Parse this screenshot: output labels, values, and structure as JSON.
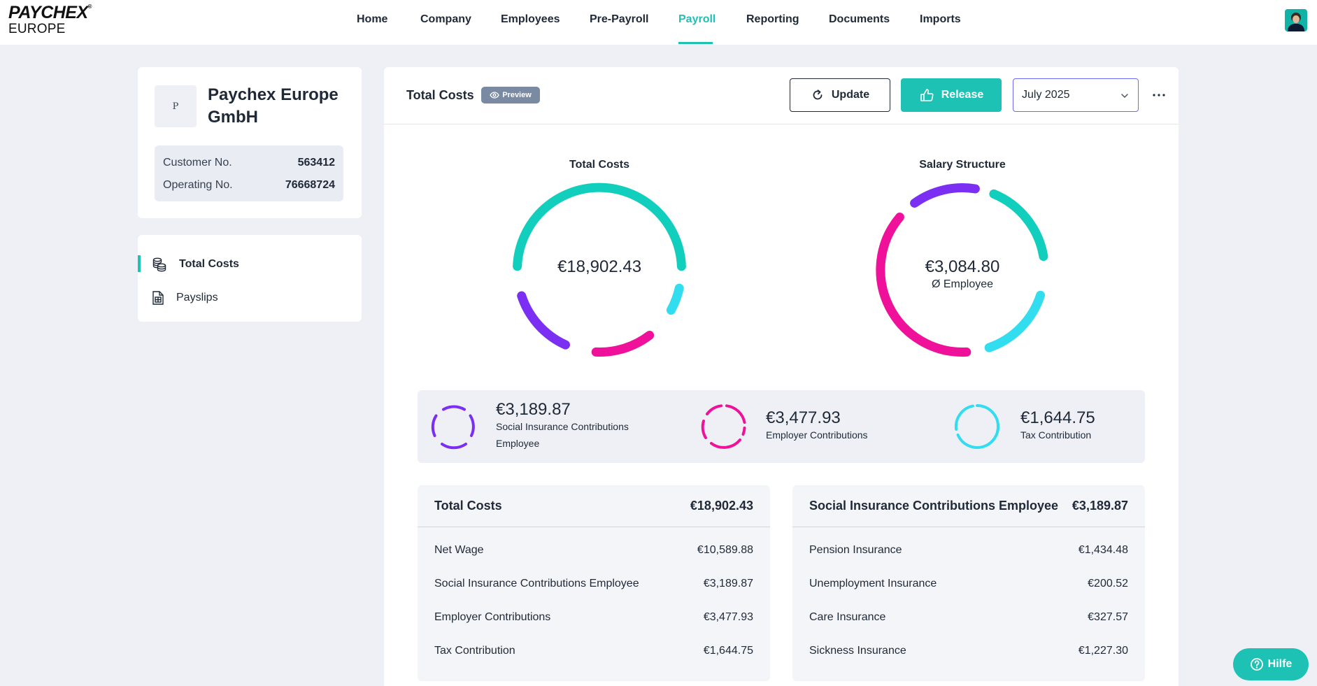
{
  "brand": {
    "line1": "PAYCHEX",
    "line2": "EUROPE"
  },
  "nav": [
    {
      "label": "Home"
    },
    {
      "label": "Company"
    },
    {
      "label": "Employees"
    },
    {
      "label": "Pre-Payroll"
    },
    {
      "label": "Payroll",
      "active": true
    },
    {
      "label": "Reporting"
    },
    {
      "label": "Documents"
    },
    {
      "label": "Imports"
    }
  ],
  "company": {
    "initial": "P",
    "name": "Paychex Europe GmbH",
    "customer_label": "Customer No.",
    "customer_no": "563412",
    "operating_label": "Operating No.",
    "operating_no": "76668724"
  },
  "side_menu": [
    {
      "label": "Total Costs",
      "icon": "coins-stack-icon",
      "active": true
    },
    {
      "label": "Payslips",
      "icon": "payslip-document-icon"
    }
  ],
  "header": {
    "title": "Total Costs",
    "badge": "Preview",
    "update_label": "Update",
    "release_label": "Release",
    "month": "July 2025"
  },
  "charts": {
    "total_costs": {
      "title": "Total Costs",
      "value": "€18,902.43"
    },
    "salary_structure": {
      "title": "Salary Structure",
      "value": "€3,084.80",
      "sub": "Ø Employee"
    }
  },
  "summary": [
    {
      "value": "€3,189.87",
      "label_1": "Social Insurance Contributions",
      "label_2": "Employee",
      "color": "#7b2ff2"
    },
    {
      "value": "€3,477.93",
      "label_1": "Employer Contributions",
      "color": "#f0119b"
    },
    {
      "value": "€1,644.75",
      "label_1": "Tax Contribution",
      "color": "#33ddf0"
    }
  ],
  "tables": [
    {
      "title": "Total Costs",
      "total": "€18,902.43",
      "rows": [
        {
          "label": "Net Wage",
          "value": "€10,589.88"
        },
        {
          "label": "Social Insurance Contributions Employee",
          "value": "€3,189.87"
        },
        {
          "label": "Employer Contributions",
          "value": "€3,477.93"
        },
        {
          "label": "Tax Contribution",
          "value": "€1,644.75"
        }
      ]
    },
    {
      "title": "Social Insurance Contributions Employee",
      "total": "€3,189.87",
      "rows": [
        {
          "label": "Pension Insurance",
          "value": "€1,434.48"
        },
        {
          "label": "Unemployment Insurance",
          "value": "€200.52"
        },
        {
          "label": "Care Insurance",
          "value": "€327.57"
        },
        {
          "label": "Sickness Insurance",
          "value": "€1,227.30"
        }
      ]
    }
  ],
  "help": {
    "label": "Hilfe"
  },
  "colors": {
    "accent": "#1ec2b4",
    "purple": "#7b2ff2",
    "magenta": "#f0119b",
    "cyan": "#33ddf0",
    "teal": "#12cfbd",
    "select_border": "#6d6af5"
  }
}
